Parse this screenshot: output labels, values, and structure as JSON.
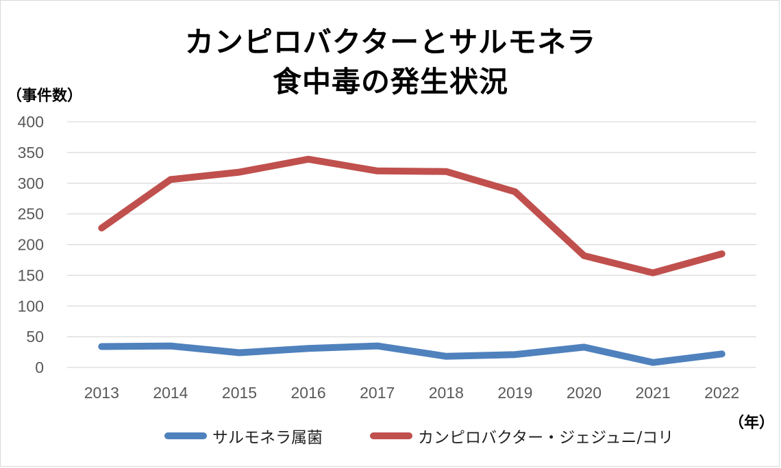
{
  "chart_data": {
    "type": "line",
    "title_line1": "カンピロバクターとサルモネラ",
    "title_line2": "食中毒の発生状況",
    "ylabel": "（事件数）",
    "xlabel": "（年）",
    "categories": [
      "2013",
      "2014",
      "2015",
      "2016",
      "2017",
      "2018",
      "2019",
      "2020",
      "2021",
      "2022"
    ],
    "ylim": [
      0,
      400
    ],
    "yticks": [
      0,
      50,
      100,
      150,
      200,
      250,
      300,
      350,
      400
    ],
    "grid": true,
    "legend_position": "bottom",
    "series": [
      {
        "name": "サルモネラ属菌",
        "color": "#4f81bd",
        "values": [
          34,
          35,
          24,
          31,
          35,
          18,
          21,
          33,
          8,
          22
        ]
      },
      {
        "name": "カンピロバクター・ジェジュニ/コリ",
        "color": "#c0504d",
        "values": [
          227,
          306,
          318,
          339,
          320,
          319,
          286,
          182,
          154,
          185
        ]
      }
    ]
  }
}
